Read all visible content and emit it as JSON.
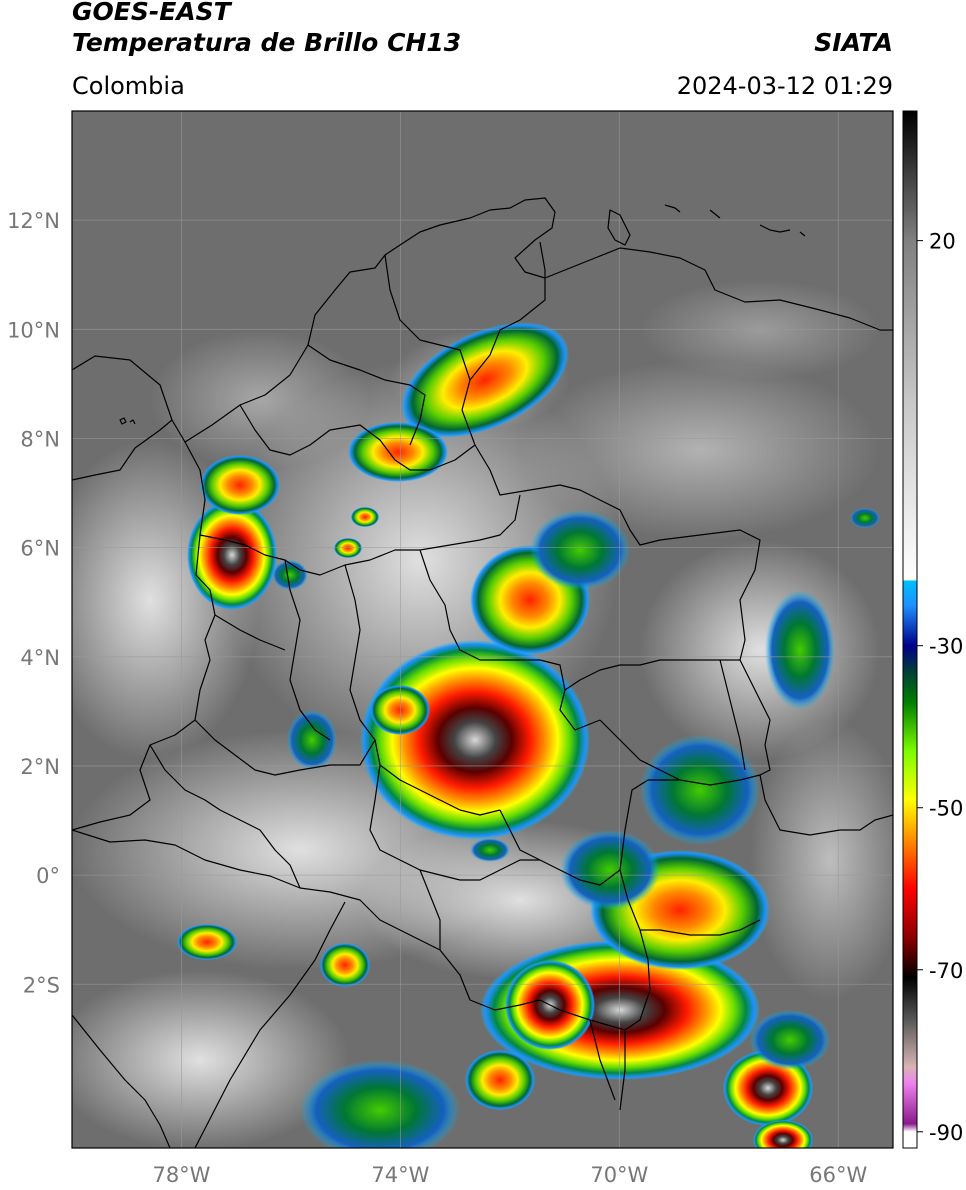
{
  "header": {
    "satellite": "GOES-EAST",
    "product": "Temperatura de Brillo CH13",
    "agency": "SIATA",
    "region": "Colombia",
    "datetime": "2024-03-12 01:29"
  },
  "map": {
    "lon_range": [
      -80,
      -65
    ],
    "lat_range": [
      -5,
      14
    ],
    "lat_ticks": [
      {
        "value": 12,
        "label": "12°N"
      },
      {
        "value": 10,
        "label": "10°N"
      },
      {
        "value": 8,
        "label": "8°N"
      },
      {
        "value": 6,
        "label": "6°N"
      },
      {
        "value": 4,
        "label": "4°N"
      },
      {
        "value": 2,
        "label": "2°N"
      },
      {
        "value": 0,
        "label": "0°"
      },
      {
        "value": -2,
        "label": "2°S"
      }
    ],
    "lon_ticks": [
      {
        "value": -78,
        "label": "78°W"
      },
      {
        "value": -74,
        "label": "74°W"
      },
      {
        "value": -70,
        "label": "70°W"
      },
      {
        "value": -66,
        "label": "66°W"
      }
    ],
    "colors": {
      "background_cloud": "#6e6e6e",
      "grid": "#9a9a9a",
      "borders": "#000000"
    }
  },
  "colorbar": {
    "range": [
      -92,
      36
    ],
    "ticks": [
      {
        "value": 20,
        "label": "20"
      },
      {
        "value": -30,
        "label": "-30"
      },
      {
        "value": -50,
        "label": "-50"
      },
      {
        "value": -70,
        "label": "-70"
      },
      {
        "value": -90,
        "label": "-90"
      }
    ],
    "stops": [
      {
        "t": -92,
        "color": "#ffffff"
      },
      {
        "t": -90,
        "color": "#ffffff"
      },
      {
        "t": -89,
        "color": "#8b1a8b"
      },
      {
        "t": -84,
        "color": "#ee82ee"
      },
      {
        "t": -82,
        "color": "#d8b4b4"
      },
      {
        "t": -76,
        "color": "#555555"
      },
      {
        "t": -71,
        "color": "#000000"
      },
      {
        "t": -66,
        "color": "#8b0000"
      },
      {
        "t": -60,
        "color": "#ff0000"
      },
      {
        "t": -54,
        "color": "#ff8c00"
      },
      {
        "t": -49,
        "color": "#ffff00"
      },
      {
        "t": -43,
        "color": "#7cfc00"
      },
      {
        "t": -37,
        "color": "#008000"
      },
      {
        "t": -33,
        "color": "#003b3b"
      },
      {
        "t": -30,
        "color": "#00008b"
      },
      {
        "t": -25,
        "color": "#1e90ff"
      },
      {
        "t": -22,
        "color": "#00bfff"
      },
      {
        "t": -21.9,
        "color": "#ffffff"
      },
      {
        "t": 0,
        "color": "#c8c8c8"
      },
      {
        "t": 20,
        "color": "#808080"
      },
      {
        "t": 36,
        "color": "#000000"
      }
    ]
  }
}
